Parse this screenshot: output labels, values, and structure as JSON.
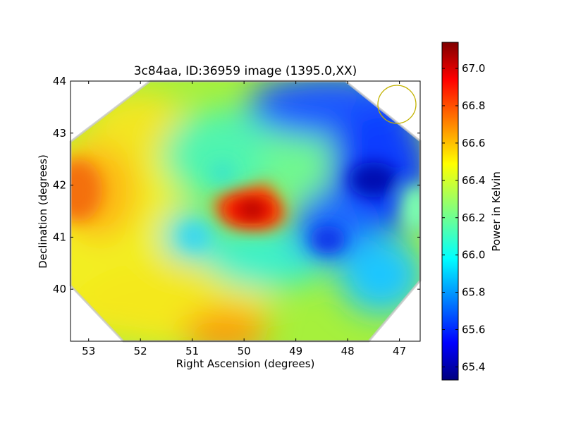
{
  "chart_data": {
    "type": "heatmap",
    "title": "3c84aa, ID:36959 image (1395.0,XX)",
    "xlabel": "Right Ascension (degrees)",
    "ylabel": "Declination (degrees)",
    "xlim": [
      53.35,
      46.6
    ],
    "ylim": [
      39.0,
      44.0
    ],
    "x_ticks": [
      53,
      52,
      51,
      50,
      49,
      48,
      47
    ],
    "y_ticks": [
      40,
      41,
      42,
      43,
      44
    ],
    "colorbar": {
      "label": "Power in Kelvin",
      "colormap": "jet",
      "range": [
        65.33,
        67.14
      ],
      "ticks": [
        "65.4",
        "65.6",
        "65.8",
        "66.0",
        "66.2",
        "66.4",
        "66.6",
        "66.8",
        "67.0"
      ]
    },
    "field_boundary": "octagon",
    "beam_circle": {
      "ra": 47.05,
      "dec": 43.55,
      "color": "#c2b200"
    },
    "features": [
      {
        "type": "max",
        "ra": 49.85,
        "dec": 41.55,
        "value": 67.1
      },
      {
        "type": "high",
        "ra": 53.1,
        "dec": 41.85,
        "value": 66.75
      },
      {
        "type": "high",
        "ra": 50.3,
        "dec": 39.2,
        "value": 66.7
      },
      {
        "type": "min",
        "ra": 47.4,
        "dec": 42.1,
        "value": 65.4
      },
      {
        "type": "low",
        "ra": 48.6,
        "dec": 43.2,
        "value": 65.65
      },
      {
        "type": "low",
        "ra": 48.4,
        "dec": 40.95,
        "value": 65.65
      },
      {
        "type": "mid",
        "ra": 46.8,
        "dec": 41.55,
        "value": 66.05
      },
      {
        "type": "mid",
        "ra": 50.9,
        "dec": 41.05,
        "value": 66.0
      },
      {
        "type": "mid",
        "ra": 50.5,
        "dec": 42.25,
        "value": 66.05
      }
    ]
  }
}
